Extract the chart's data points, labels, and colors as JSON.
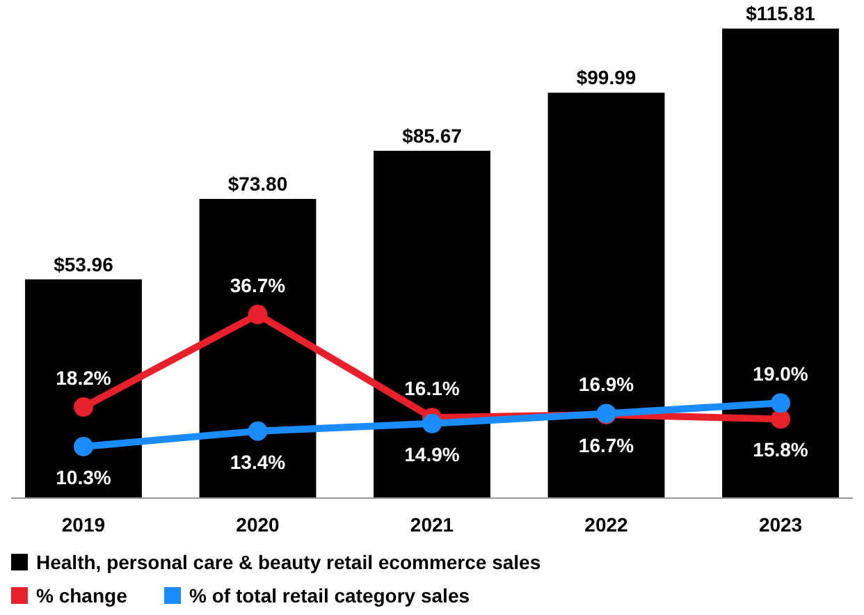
{
  "chart_data": {
    "type": "bar",
    "categories": [
      "2019",
      "2020",
      "2021",
      "2022",
      "2023"
    ],
    "series": [
      {
        "name": "Health, personal care & beauty retail ecommerce sales",
        "color": "#000000",
        "values": [
          53.96,
          73.8,
          85.67,
          99.99,
          115.81
        ],
        "value_labels": [
          "$53.96",
          "$73.80",
          "$85.67",
          "$99.99",
          "$115.81"
        ]
      },
      {
        "name": "% change",
        "type": "line",
        "axis": "y2",
        "color": "#e8202a",
        "values": [
          18.2,
          36.7,
          16.1,
          16.7,
          15.8
        ],
        "value_labels": [
          "18.2%",
          "36.7%",
          "16.1%",
          "16.7%",
          "15.8%"
        ]
      },
      {
        "name": "% of total retail category sales",
        "type": "line",
        "axis": "y2",
        "color": "#1a8cff",
        "values": [
          10.3,
          13.4,
          14.9,
          16.9,
          19.0
        ],
        "value_labels": [
          "10.3%",
          "13.4%",
          "14.9%",
          "16.9%",
          "19.0%"
        ]
      }
    ],
    "ylim": [
      0,
      116
    ],
    "y2lim": [
      0,
      94
    ],
    "tick_labels": "x",
    "marker": "circle",
    "legend": "bottom",
    "grid": false
  }
}
